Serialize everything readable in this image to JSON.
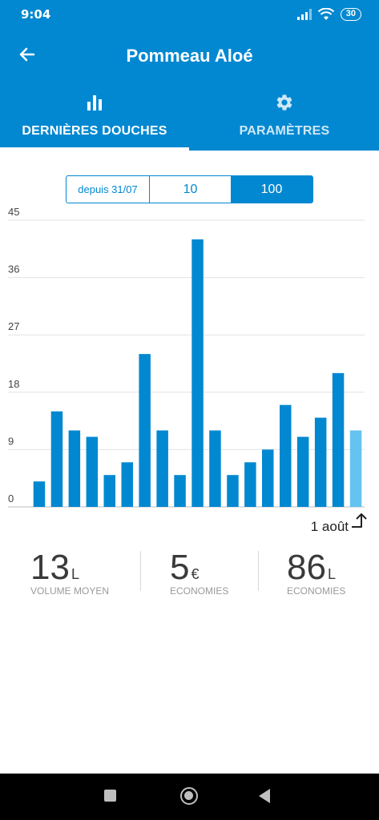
{
  "status_bar": {
    "time": "9:04",
    "battery": "30"
  },
  "header": {
    "title": "Pommeau Aloé"
  },
  "tabs": [
    {
      "label": "DERNIÈRES DOUCHES",
      "icon": "bar-chart-icon",
      "active": true
    },
    {
      "label": "PARAMÈTRES",
      "icon": "gear-icon",
      "active": false
    }
  ],
  "period_selector": {
    "options": [
      "depuis 31/07",
      "10",
      "100"
    ],
    "selected": "100"
  },
  "chart_data": {
    "type": "bar",
    "values": [
      4,
      15,
      12,
      11,
      5,
      7,
      24,
      12,
      5,
      42,
      12,
      5,
      7,
      9,
      16,
      11,
      14,
      21,
      12
    ],
    "highlight_last": true,
    "ylim": [
      0,
      45
    ],
    "yticks": [
      "0",
      "9",
      "18",
      "27",
      "36",
      "45"
    ],
    "grid": true,
    "colors": {
      "bar": "#0288d1",
      "last_bar": "#64c3f0"
    }
  },
  "chart_footer": {
    "date_label": "1 août"
  },
  "stats": [
    {
      "value": "13",
      "unit": "L",
      "caption": "VOLUME MOYEN"
    },
    {
      "value": "5",
      "unit": "€",
      "caption": "ECONOMIES"
    },
    {
      "value": "86",
      "unit": "L",
      "caption": "ECONOMIES"
    }
  ],
  "colors": {
    "primary": "#0288d1",
    "tab_inactive": "#cfe8f6"
  }
}
